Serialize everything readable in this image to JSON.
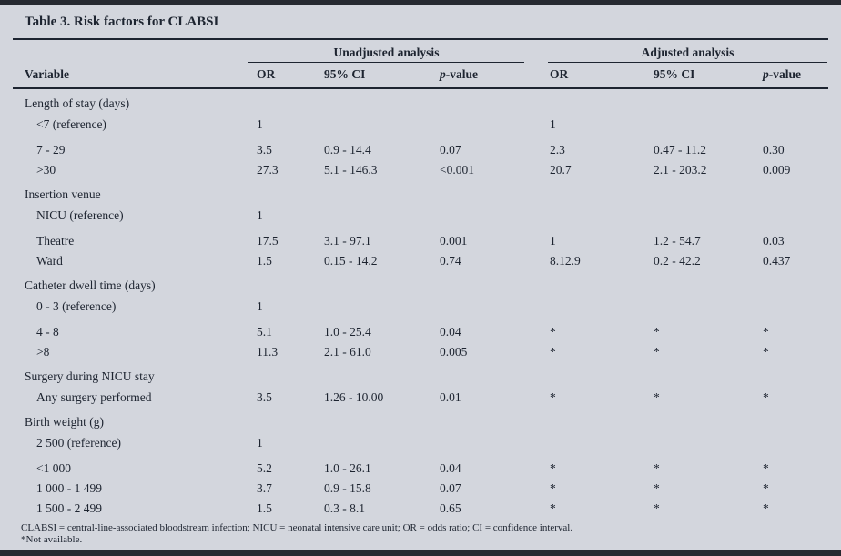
{
  "title": "Table 3. Risk factors for CLABSI",
  "header": {
    "variable": "Variable",
    "unadjusted_group": "Unadjusted analysis",
    "adjusted_group": "Adjusted analysis",
    "or": "OR",
    "ci": "95% CI",
    "p_italic": "p",
    "p_suffix": "-value"
  },
  "sections": [
    {
      "header": "Length of stay (days)",
      "rows": [
        {
          "label": "<7 (reference)",
          "cells": [
            "1",
            "",
            "",
            "1",
            "",
            ""
          ],
          "gap": false
        },
        {
          "label": "7 - 29",
          "cells": [
            "3.5",
            "0.9 - 14.4",
            "0.07",
            "2.3",
            "0.47 - 11.2",
            "0.30"
          ],
          "gap": true
        },
        {
          "label": ">30",
          "cells": [
            "27.3",
            "5.1 - 146.3",
            "<0.001",
            "20.7",
            "2.1 - 203.2",
            "0.009"
          ],
          "gap": false
        }
      ]
    },
    {
      "header": "Insertion venue",
      "rows": [
        {
          "label": "NICU (reference)",
          "cells": [
            "1",
            "",
            "",
            "",
            "",
            ""
          ],
          "gap": false
        },
        {
          "label": "Theatre",
          "cells": [
            "17.5",
            "3.1 - 97.1",
            "0.001",
            "1",
            "1.2 - 54.7",
            "0.03"
          ],
          "gap": true
        },
        {
          "label": "Ward",
          "cells": [
            "1.5",
            "0.15 - 14.2",
            "0.74",
            "8.12.9",
            "0.2 - 42.2",
            "0.437"
          ],
          "gap": false
        }
      ]
    },
    {
      "header": "Catheter dwell time (days)",
      "rows": [
        {
          "label": "0 - 3 (reference)",
          "cells": [
            "1",
            "",
            "",
            "",
            "",
            ""
          ],
          "gap": false
        },
        {
          "label": "4 - 8",
          "cells": [
            "5.1",
            "1.0 - 25.4",
            "0.04",
            "*",
            "*",
            "*"
          ],
          "gap": true
        },
        {
          "label": ">8",
          "cells": [
            "11.3",
            "2.1 - 61.0",
            "0.005",
            "*",
            "*",
            "*"
          ],
          "gap": false
        }
      ]
    },
    {
      "header": "Surgery during NICU stay",
      "rows": [
        {
          "label": "Any surgery performed",
          "cells": [
            "3.5",
            "1.26 - 10.00",
            "0.01",
            "*",
            "*",
            "*"
          ],
          "gap": false
        }
      ]
    },
    {
      "header": "Birth weight (g)",
      "rows": [
        {
          "label": "2 500 (reference)",
          "cells": [
            "1",
            "",
            "",
            "",
            "",
            ""
          ],
          "gap": false
        },
        {
          "label": "<1 000",
          "cells": [
            "5.2",
            "1.0 - 26.1",
            "0.04",
            "*",
            "*",
            "*"
          ],
          "gap": true
        },
        {
          "label": "1 000 - 1 499",
          "cells": [
            "3.7",
            "0.9 - 15.8",
            "0.07",
            "*",
            "*",
            "*"
          ],
          "gap": false
        },
        {
          "label": "1 500 - 2 499",
          "cells": [
            "1.5",
            "0.3 - 8.1",
            "0.65",
            "*",
            "*",
            "*"
          ],
          "gap": false
        }
      ]
    }
  ],
  "footnotes": [
    "CLABSI = central-line-associated bloodstream infection; NICU = neonatal intensive care unit; OR = odds ratio; CI = confidence interval.",
    "*Not available."
  ],
  "colors": {
    "background": "#d3d6dd",
    "bar": "#262a31",
    "text": "#1d2430"
  }
}
